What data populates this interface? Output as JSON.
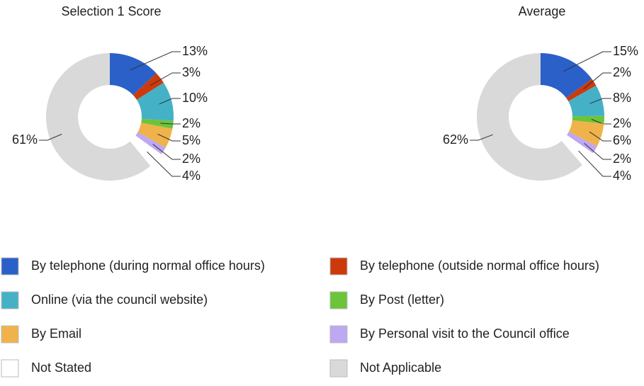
{
  "chart_data": [
    {
      "type": "donut",
      "title": "Selection 1 Score",
      "values": [
        13,
        3,
        10,
        2,
        5,
        2,
        4,
        61
      ],
      "value_labels": [
        "13%",
        "3%",
        "10%",
        "2%",
        "5%",
        "2%",
        "4%",
        "61%"
      ]
    },
    {
      "type": "donut",
      "title": "Average",
      "values": [
        15,
        2,
        8,
        2,
        6,
        2,
        4,
        62
      ],
      "value_labels": [
        "15%",
        "2%",
        "8%",
        "2%",
        "6%",
        "2%",
        "4%",
        "62%"
      ]
    }
  ],
  "legend": {
    "categories": [
      "By telephone (during normal office hours)",
      "By telephone (outside normal office hours)",
      "Online (via the council website)",
      "By Post (letter)",
      "By Email",
      "By Personal visit to the Council office",
      "Not Stated",
      "Not Applicable"
    ],
    "colors": [
      "#2a60c8",
      "#cc3a0c",
      "#45b1c6",
      "#6cc43a",
      "#f0b24a",
      "#bda8f2",
      "#ffffff",
      "#d9d9d9"
    ]
  }
}
